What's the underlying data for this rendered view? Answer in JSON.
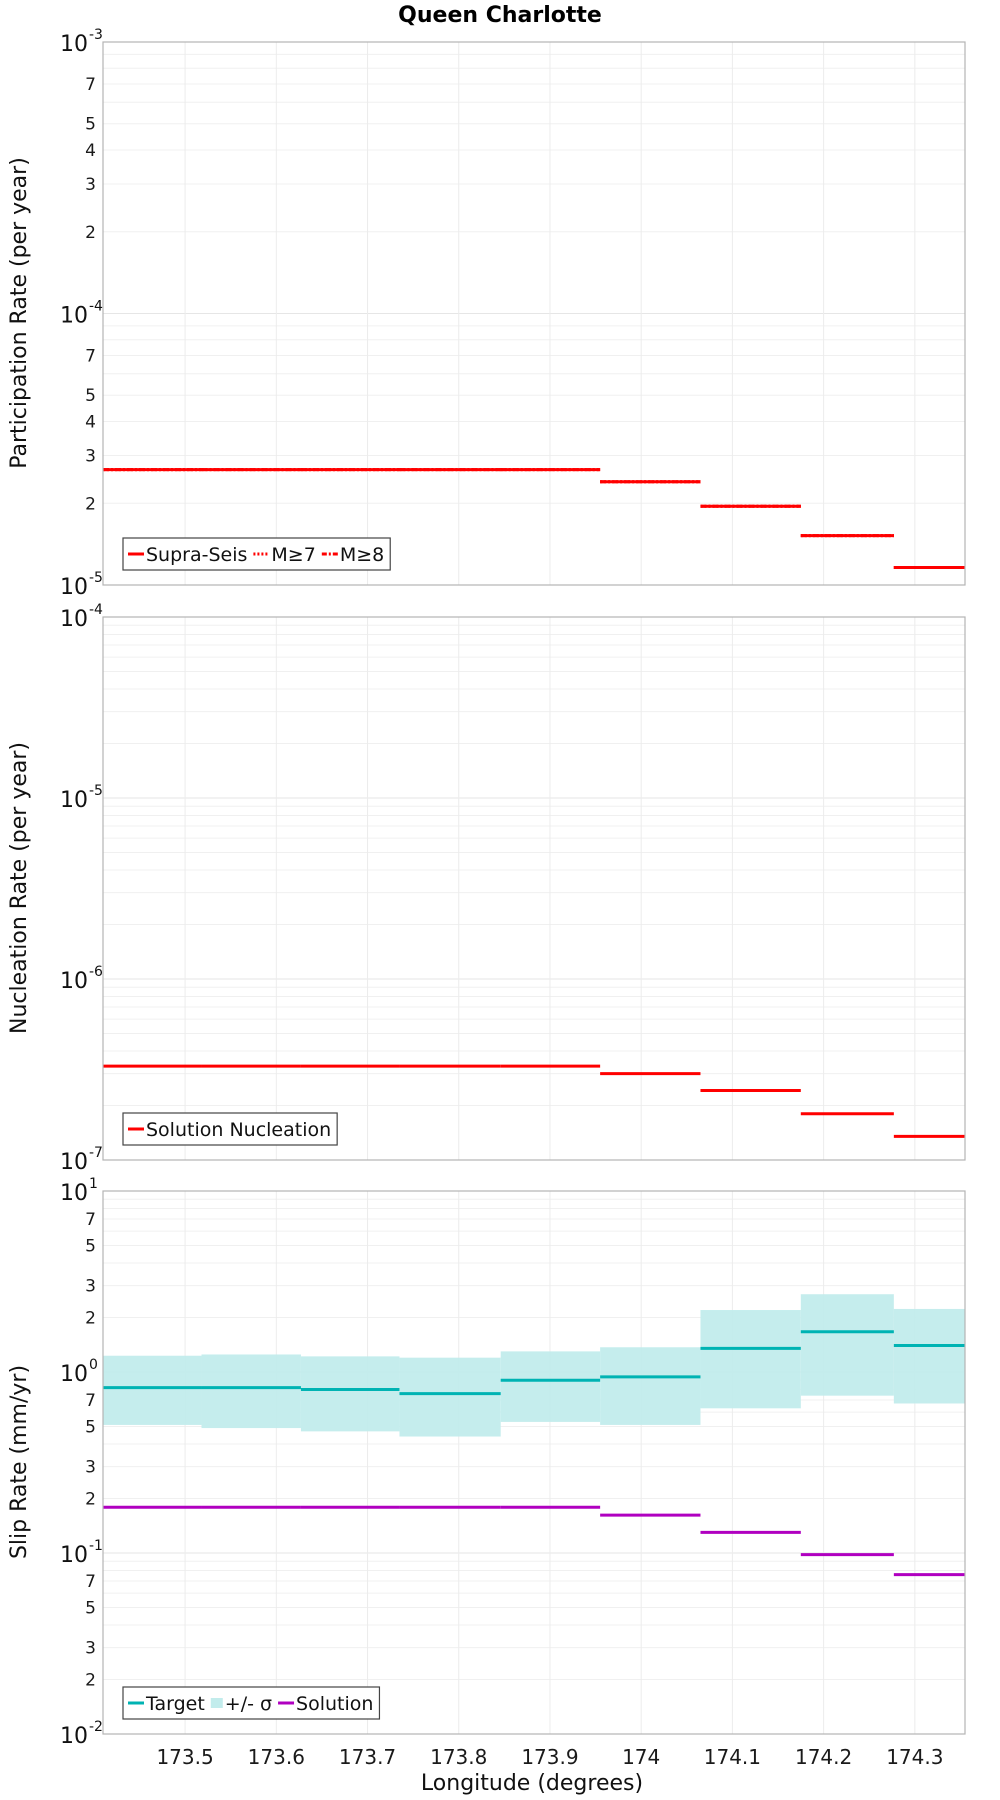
{
  "title": "Queen Charlotte",
  "colors": {
    "red": "#ff0000",
    "teal": "#00b3b3",
    "teal_band": "#c2ecec",
    "purple": "#b000c0"
  },
  "x_axis": {
    "label": "Longitude (degrees)",
    "range": [
      173.41,
      174.355
    ],
    "tick_values": [
      173.5,
      173.6,
      173.7,
      173.8,
      173.9,
      174.0,
      174.1,
      174.2,
      174.3
    ],
    "tick_labels": [
      "173.5",
      "173.6",
      "173.7",
      "173.8",
      "173.9",
      "174",
      "174.1",
      "174.2",
      "174.3"
    ]
  },
  "bin_edges": [
    173.41,
    173.518,
    173.627,
    173.735,
    173.846,
    173.955,
    174.065,
    174.175,
    174.277,
    174.355
  ],
  "chart_data": [
    {
      "type": "line",
      "panel": "participation",
      "ylabel": "Participation Rate (per year)",
      "yscale": "log",
      "ylim": [
        1e-05,
        0.001
      ],
      "major_ticks": [
        {
          "value": 0.001,
          "base": "10",
          "exp": "-3"
        },
        {
          "value": 0.0001,
          "base": "10",
          "exp": "-4"
        },
        {
          "value": 1e-05,
          "base": "10",
          "exp": "-5"
        }
      ],
      "minor_tick_labels": [
        {
          "value": 0.0007,
          "label": "7"
        },
        {
          "value": 0.0005,
          "label": "5"
        },
        {
          "value": 0.0004,
          "label": "4"
        },
        {
          "value": 0.0003,
          "label": "3"
        },
        {
          "value": 0.0002,
          "label": "2"
        },
        {
          "value": 7e-05,
          "label": "7"
        },
        {
          "value": 5e-05,
          "label": "5"
        },
        {
          "value": 4e-05,
          "label": "4"
        },
        {
          "value": 3e-05,
          "label": "3"
        },
        {
          "value": 2e-05,
          "label": "2"
        }
      ],
      "series": [
        {
          "name": "Supra-Seis",
          "style": "solid",
          "color": "#ff0000",
          "values": [
            2.66e-05,
            2.66e-05,
            2.66e-05,
            2.66e-05,
            2.66e-05,
            2.4e-05,
            1.95e-05,
            1.52e-05,
            1.16e-05
          ]
        },
        {
          "name": "M≥7",
          "style": "dotted",
          "color": "#ff0000",
          "values": [
            2.66e-05,
            2.66e-05,
            2.66e-05,
            2.66e-05,
            2.66e-05,
            2.4e-05,
            1.95e-05,
            1.52e-05,
            1.16e-05
          ]
        },
        {
          "name": "M≥8",
          "style": "dashdot",
          "color": "#ff0000",
          "values": [
            2.66e-05,
            2.66e-05,
            2.66e-05,
            2.66e-05,
            2.66e-05,
            2.4e-05,
            1.95e-05,
            1.52e-05,
            1.16e-05
          ]
        }
      ],
      "legend": [
        {
          "label": "Supra-Seis",
          "style": "solid"
        },
        {
          "label": "M≥7",
          "style": "dotted"
        },
        {
          "label": "M≥8",
          "style": "dashdot"
        }
      ]
    },
    {
      "type": "line",
      "panel": "nucleation",
      "ylabel": "Nucleation Rate (per year)",
      "yscale": "log",
      "ylim": [
        1e-07,
        0.0001
      ],
      "major_ticks": [
        {
          "value": 0.0001,
          "base": "10",
          "exp": "-4"
        },
        {
          "value": 1e-05,
          "base": "10",
          "exp": "-5"
        },
        {
          "value": 1e-06,
          "base": "10",
          "exp": "-6"
        },
        {
          "value": 1e-07,
          "base": "10",
          "exp": "-7"
        }
      ],
      "minor_tick_labels": [],
      "series": [
        {
          "name": "Solution Nucleation",
          "style": "solid",
          "color": "#ff0000",
          "values": [
            3.3e-07,
            3.3e-07,
            3.3e-07,
            3.3e-07,
            3.3e-07,
            3e-07,
            2.42e-07,
            1.8e-07,
            1.35e-07
          ]
        }
      ],
      "legend": [
        {
          "label": "Solution Nucleation",
          "style": "solid"
        }
      ]
    },
    {
      "type": "line",
      "panel": "slip",
      "ylabel": "Slip Rate (mm/yr)",
      "yscale": "log",
      "ylim": [
        0.01,
        10
      ],
      "major_ticks": [
        {
          "value": 10,
          "base": "10",
          "exp": "1"
        },
        {
          "value": 1,
          "base": "10",
          "exp": "0"
        },
        {
          "value": 0.1,
          "base": "10",
          "exp": "-1"
        },
        {
          "value": 0.01,
          "base": "10",
          "exp": "-2"
        }
      ],
      "minor_tick_labels": [
        {
          "value": 7,
          "label": "7"
        },
        {
          "value": 5,
          "label": "5"
        },
        {
          "value": 3,
          "label": "3"
        },
        {
          "value": 2,
          "label": "2"
        },
        {
          "value": 0.7,
          "label": "7"
        },
        {
          "value": 0.5,
          "label": "5"
        },
        {
          "value": 0.3,
          "label": "3"
        },
        {
          "value": 0.2,
          "label": "2"
        },
        {
          "value": 0.07,
          "label": "7"
        },
        {
          "value": 0.05,
          "label": "5"
        },
        {
          "value": 0.03,
          "label": "3"
        },
        {
          "value": 0.02,
          "label": "2"
        }
      ],
      "series": [
        {
          "name": "Target",
          "style": "solid",
          "color": "#00b3b3",
          "values": [
            0.82,
            0.82,
            0.8,
            0.76,
            0.9,
            0.94,
            1.35,
            1.67,
            1.4
          ]
        },
        {
          "name": "+/- σ",
          "style": "band",
          "color": "#c2ecec",
          "upper": [
            1.23,
            1.25,
            1.22,
            1.2,
            1.3,
            1.37,
            2.2,
            2.69,
            2.23
          ],
          "lower": [
            0.51,
            0.49,
            0.47,
            0.44,
            0.53,
            0.51,
            0.63,
            0.74,
            0.67
          ]
        },
        {
          "name": "Solution",
          "style": "solid",
          "color": "#b000c0",
          "values": [
            0.179,
            0.179,
            0.179,
            0.179,
            0.179,
            0.162,
            0.13,
            0.098,
            0.076
          ]
        }
      ],
      "legend": [
        {
          "label": "Target",
          "style": "line"
        },
        {
          "label": "+/- σ",
          "style": "band"
        },
        {
          "label": "Solution",
          "style": "line"
        }
      ]
    }
  ]
}
